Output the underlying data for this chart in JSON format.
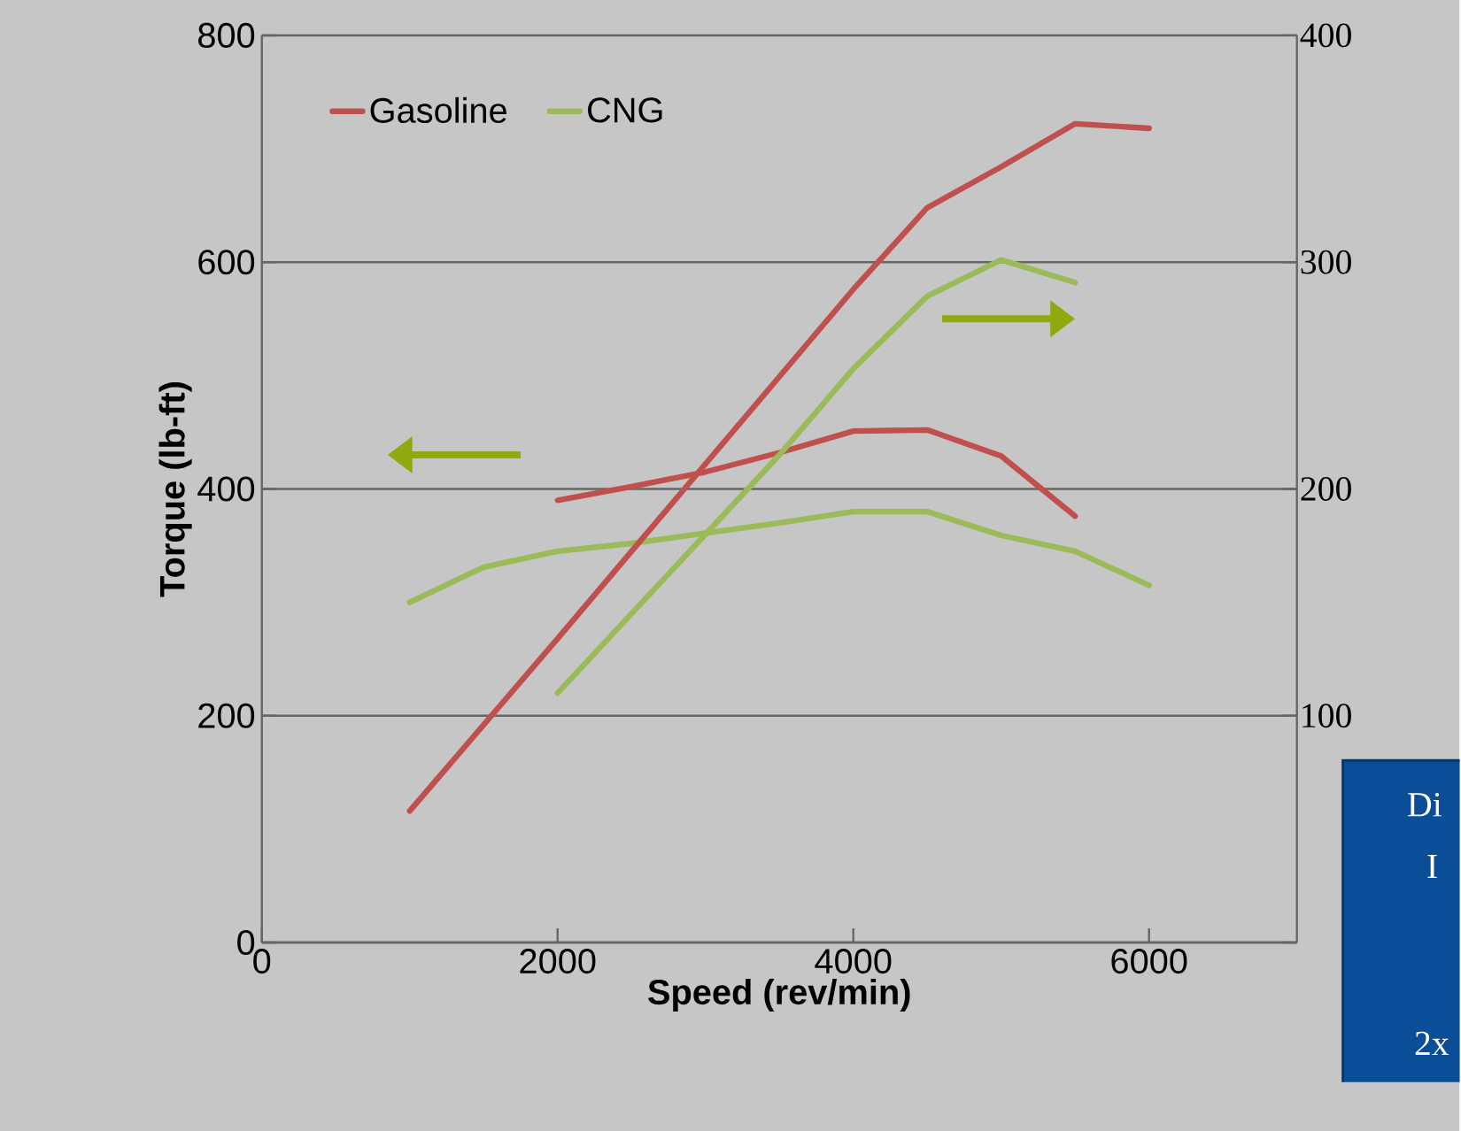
{
  "chart_data": {
    "type": "line",
    "xlabel": "Speed (rev/min)",
    "ylabel": "Torque (lb-ft)",
    "xlim": [
      0,
      7000
    ],
    "xticks": [
      0,
      2000,
      4000,
      6000
    ],
    "ylim": [
      0,
      800
    ],
    "yticks": [
      0,
      200,
      400,
      600,
      800
    ],
    "y2lim": [
      0,
      400
    ],
    "y2ticks": [
      {
        "value": 0,
        "label": null
      },
      100,
      200,
      300,
      400
    ],
    "grid": "y",
    "legend": "top left",
    "marker": "none",
    "line_style": "solid",
    "series": [
      {
        "name": "Gasoline",
        "color": "#c0504d",
        "x": [
          2000,
          2500,
          3000,
          3500,
          4000,
          4500,
          5000,
          5500
        ],
        "values": [
          390,
          402,
          415,
          432,
          451,
          452,
          429,
          376
        ]
      },
      {
        "name": "CNG",
        "color": "#9bbb59",
        "x": [
          1000,
          1500,
          2000,
          2500,
          3000,
          3500,
          4000,
          4500,
          5000,
          5500,
          6000
        ],
        "values": [
          300,
          331,
          345,
          352,
          361,
          370,
          380,
          380,
          359,
          345,
          315
        ]
      },
      {
        "color": "#c0504d",
        "axis": "y2",
        "x": [
          1000,
          2000,
          3000,
          4000,
          4500,
          5000,
          5500,
          6000
        ],
        "values": [
          58,
          134,
          211,
          288,
          324,
          342,
          361,
          359
        ]
      },
      {
        "color": "#9bbb59",
        "axis": "y2",
        "x": [
          2000,
          2500,
          3000,
          3500,
          4000,
          4500,
          5000,
          5500
        ],
        "values": [
          110,
          145,
          180,
          215,
          253,
          285,
          301,
          291
        ]
      }
    ],
    "annotations": [
      "Di",
      "I",
      "2x"
    ]
  }
}
